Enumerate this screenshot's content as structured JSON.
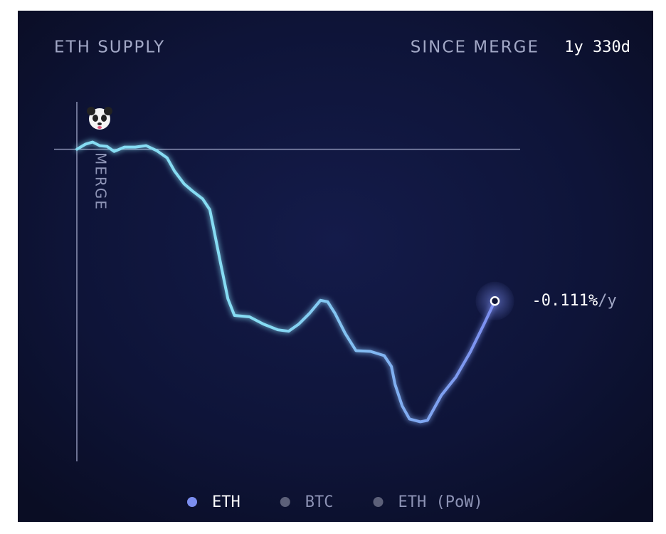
{
  "chart_data": {
    "type": "line",
    "title": "ETH SUPPLY",
    "since_label": "SINCE MERGE",
    "duration": "1y 330d",
    "annotation": "MERGE",
    "end_rate": "-0.111%",
    "end_rate_unit": "/y",
    "xlim": [
      -38,
      737
    ],
    "ylim": [
      -0.434,
      0.064
    ],
    "x": [
      0,
      14,
      26,
      38,
      50,
      62,
      79,
      97,
      115,
      133,
      150,
      162,
      178,
      192,
      209,
      221,
      227,
      239,
      251,
      262,
      287,
      310,
      334,
      352,
      369,
      387,
      405,
      417,
      429,
      446,
      464,
      488,
      511,
      523,
      529,
      541,
      553,
      571,
      583,
      606,
      630,
      654,
      677,
      695
    ],
    "series": [
      {
        "name": "ETH",
        "color": "#7c8ef0",
        "line_start_color": "#86dcf3",
        "values": [
          0,
          0.007,
          0.01,
          0.005,
          0.004,
          -0.003,
          0.003,
          0.003,
          0.005,
          -0.002,
          -0.012,
          -0.03,
          -0.048,
          -0.058,
          -0.069,
          -0.084,
          -0.109,
          -0.159,
          -0.208,
          -0.231,
          -0.233,
          -0.243,
          -0.251,
          -0.253,
          -0.243,
          -0.228,
          -0.21,
          -0.212,
          -0.228,
          -0.256,
          -0.28,
          -0.281,
          -0.287,
          -0.302,
          -0.327,
          -0.357,
          -0.375,
          -0.379,
          -0.377,
          -0.342,
          -0.317,
          -0.282,
          -0.243,
          -0.211
        ]
      }
    ],
    "legend_items": [
      {
        "name": "ETH",
        "color": "#7c8ef0"
      },
      {
        "name": "BTC",
        "color": "#5c6079"
      },
      {
        "name": "ETH (PoW)",
        "color": "#5c6079"
      }
    ]
  }
}
